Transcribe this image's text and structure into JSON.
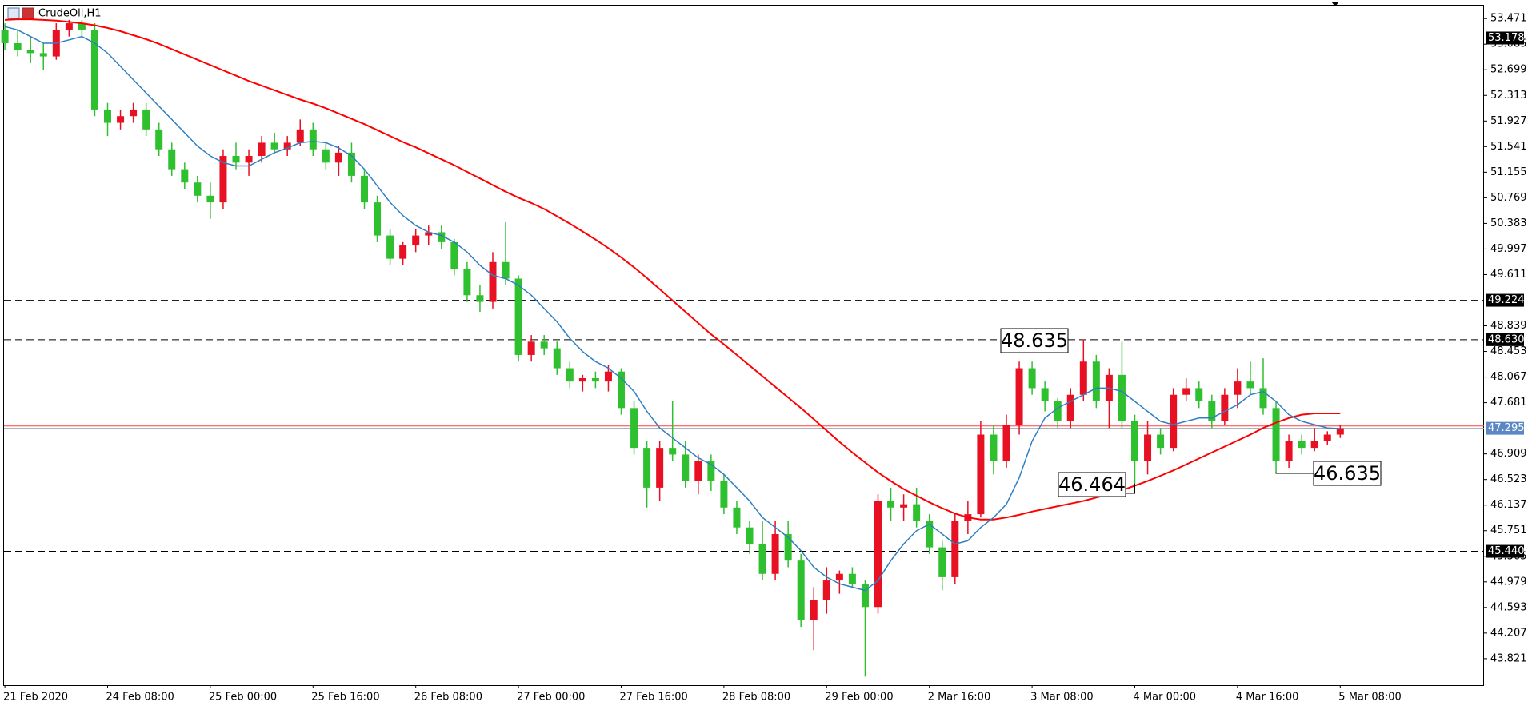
{
  "chart_data": {
    "type": "candlestick",
    "title": "CrudeOil,H1",
    "categories": [
      "21 Feb 2020",
      null,
      null,
      null,
      null,
      null,
      null,
      null,
      "24 Feb 08:00",
      null,
      null,
      null,
      null,
      null,
      null,
      null,
      "25 Feb 00:00",
      null,
      null,
      null,
      null,
      null,
      null,
      null,
      "25 Feb 16:00",
      null,
      null,
      null,
      null,
      null,
      null,
      null,
      "26 Feb 08:00",
      null,
      null,
      null,
      null,
      null,
      null,
      null,
      "27 Feb 00:00",
      null,
      null,
      null,
      null,
      null,
      null,
      null,
      "27 Feb 16:00",
      null,
      null,
      null,
      null,
      null,
      null,
      null,
      "28 Feb 08:00",
      null,
      null,
      null,
      null,
      null,
      null,
      null,
      "29 Feb 00:00",
      null,
      null,
      null,
      null,
      null,
      null,
      null,
      "2 Mar 16:00",
      null,
      null,
      null,
      null,
      null,
      null,
      null,
      "3 Mar 08:00",
      null,
      null,
      null,
      null,
      null,
      null,
      null,
      "4 Mar 00:00",
      null,
      null,
      null,
      null,
      null,
      null,
      null,
      "4 Mar 16:00",
      null,
      null,
      null,
      null,
      null,
      null,
      null,
      "5 Mar 08:00"
    ],
    "open": [
      53.3,
      53.1,
      53.0,
      52.95,
      52.9,
      53.3,
      53.4,
      53.3,
      52.1,
      51.9,
      52.0,
      52.1,
      51.8,
      51.5,
      51.2,
      51.0,
      50.8,
      50.7,
      51.4,
      51.3,
      51.4,
      51.6,
      51.5,
      51.6,
      51.8,
      51.5,
      51.3,
      51.45,
      51.1,
      50.7,
      50.2,
      49.85,
      50.05,
      50.2,
      50.25,
      50.1,
      49.7,
      49.3,
      49.2,
      49.8,
      49.55,
      48.4,
      48.6,
      48.5,
      48.2,
      48.0,
      48.05,
      48.0,
      48.15,
      47.6,
      47.0,
      46.4,
      47.0,
      46.9,
      46.5,
      46.8,
      46.5,
      46.1,
      45.8,
      45.55,
      45.1,
      45.7,
      45.3,
      44.4,
      44.7,
      45.0,
      45.1,
      44.95,
      44.6,
      46.2,
      46.1,
      46.15,
      45.9,
      45.5,
      45.05,
      45.9,
      46.0,
      47.2,
      46.8,
      47.35,
      48.2,
      47.9,
      47.7,
      47.4,
      47.8,
      48.3,
      47.7,
      48.1,
      47.4,
      46.8,
      47.2,
      47.0,
      47.8,
      47.9,
      47.7,
      47.4,
      47.8,
      48.0,
      47.9,
      47.6,
      46.8,
      47.1,
      47.0,
      47.1,
      47.2
    ],
    "high": [
      53.4,
      53.3,
      53.2,
      53.1,
      53.4,
      53.45,
      53.45,
      53.4,
      52.2,
      52.1,
      52.2,
      52.2,
      51.9,
      51.6,
      51.3,
      51.1,
      51.0,
      51.5,
      51.6,
      51.5,
      51.7,
      51.75,
      51.7,
      51.95,
      51.9,
      51.6,
      51.55,
      51.6,
      51.2,
      50.8,
      50.3,
      50.1,
      50.3,
      50.35,
      50.35,
      50.15,
      49.8,
      49.45,
      49.95,
      50.4,
      49.6,
      48.7,
      48.7,
      48.6,
      48.3,
      48.1,
      48.15,
      48.25,
      48.2,
      47.7,
      47.1,
      47.1,
      47.7,
      47.1,
      46.9,
      46.9,
      46.6,
      46.2,
      45.9,
      45.9,
      45.9,
      45.9,
      45.4,
      44.9,
      45.2,
      45.15,
      45.2,
      45.0,
      46.3,
      46.4,
      46.3,
      46.4,
      46.0,
      45.6,
      46.0,
      46.2,
      47.4,
      47.35,
      47.5,
      48.3,
      48.3,
      48.0,
      47.75,
      47.9,
      48.635,
      48.4,
      48.2,
      48.6,
      47.5,
      47.4,
      47.3,
      47.9,
      48.05,
      48.0,
      47.8,
      47.9,
      48.2,
      48.3,
      48.35,
      47.7,
      47.2,
      47.2,
      47.3,
      47.25,
      47.35
    ],
    "low": [
      53.0,
      52.9,
      52.8,
      52.7,
      52.85,
      53.2,
      53.2,
      52.0,
      51.7,
      51.8,
      51.9,
      51.7,
      51.4,
      51.1,
      50.9,
      50.7,
      50.45,
      50.6,
      51.2,
      51.1,
      51.3,
      51.45,
      51.4,
      51.55,
      51.4,
      51.2,
      51.1,
      51.0,
      50.6,
      50.1,
      49.75,
      49.75,
      49.95,
      50.05,
      50.0,
      49.6,
      49.2,
      49.05,
      49.1,
      49.45,
      48.3,
      48.3,
      48.4,
      48.1,
      47.9,
      47.85,
      47.9,
      47.85,
      47.5,
      46.9,
      46.1,
      46.2,
      46.8,
      46.4,
      46.3,
      46.35,
      46.0,
      45.7,
      45.4,
      45.0,
      45.0,
      45.2,
      44.3,
      43.95,
      44.5,
      44.8,
      44.9,
      43.55,
      44.5,
      45.9,
      45.9,
      45.8,
      45.4,
      44.85,
      44.95,
      45.7,
      45.95,
      46.6,
      46.7,
      47.2,
      47.8,
      47.55,
      47.3,
      47.3,
      47.7,
      47.6,
      47.3,
      47.3,
      46.464,
      46.6,
      46.9,
      46.95,
      47.7,
      47.6,
      47.3,
      47.35,
      47.6,
      47.8,
      47.5,
      46.635,
      46.7,
      46.9,
      46.95,
      47.05,
      47.15
    ],
    "close": [
      53.1,
      53.0,
      52.95,
      52.9,
      53.3,
      53.4,
      53.3,
      52.1,
      51.9,
      52.0,
      52.1,
      51.8,
      51.5,
      51.2,
      51.0,
      50.8,
      50.7,
      51.4,
      51.3,
      51.4,
      51.6,
      51.5,
      51.6,
      51.8,
      51.5,
      51.3,
      51.45,
      51.1,
      50.7,
      50.2,
      49.85,
      50.05,
      50.2,
      50.25,
      50.1,
      49.7,
      49.3,
      49.2,
      49.8,
      49.55,
      48.4,
      48.6,
      48.5,
      48.2,
      48.0,
      48.05,
      48.0,
      48.15,
      47.6,
      47.0,
      46.4,
      47.0,
      46.9,
      46.5,
      46.8,
      46.5,
      46.1,
      45.8,
      45.55,
      45.1,
      45.7,
      45.3,
      44.4,
      44.7,
      45.0,
      45.1,
      44.95,
      44.6,
      46.2,
      46.1,
      46.15,
      45.9,
      45.5,
      45.05,
      45.9,
      46.0,
      47.2,
      46.8,
      47.35,
      48.2,
      47.9,
      47.7,
      47.4,
      47.8,
      48.3,
      47.7,
      48.1,
      47.4,
      46.8,
      47.2,
      47.0,
      47.8,
      47.9,
      47.7,
      47.4,
      47.8,
      48.0,
      47.9,
      47.6,
      46.8,
      47.1,
      47.0,
      47.1,
      47.2,
      47.295
    ],
    "up_color": "#e81123",
    "down_color": "#2fc02f",
    "moving_averages": [
      {
        "color": "#ff0000",
        "values": [
          53.45,
          53.46,
          53.46,
          53.45,
          53.44,
          53.42,
          53.4,
          53.37,
          53.33,
          53.28,
          53.22,
          53.16,
          53.09,
          53.01,
          52.93,
          52.85,
          52.77,
          52.69,
          52.61,
          52.53,
          52.46,
          52.39,
          52.32,
          52.25,
          52.19,
          52.12,
          52.04,
          51.96,
          51.88,
          51.79,
          51.7,
          51.61,
          51.53,
          51.44,
          51.35,
          51.26,
          51.16,
          51.06,
          50.96,
          50.86,
          50.77,
          50.69,
          50.6,
          50.49,
          50.38,
          50.26,
          50.14,
          50.01,
          49.87,
          49.72,
          49.56,
          49.39,
          49.22,
          49.05,
          48.88,
          48.71,
          48.56,
          48.4,
          48.24,
          48.08,
          47.92,
          47.76,
          47.6,
          47.43,
          47.26,
          47.09,
          46.93,
          46.78,
          46.63,
          46.5,
          46.38,
          46.28,
          46.18,
          46.09,
          46.01,
          45.95,
          45.92,
          45.92,
          45.95,
          45.99,
          46.04,
          46.08,
          46.12,
          46.16,
          46.2,
          46.25,
          46.3,
          46.36,
          46.43,
          46.5,
          46.58,
          46.66,
          46.75,
          46.84,
          46.93,
          47.02,
          47.11,
          47.2,
          47.3,
          47.38,
          47.45,
          47.5,
          47.52,
          47.52,
          47.52
        ]
      },
      {
        "color": "#2f7fc1",
        "values": [
          53.35,
          53.3,
          53.2,
          53.1,
          53.1,
          53.15,
          53.2,
          53.1,
          52.95,
          52.75,
          52.55,
          52.35,
          52.15,
          51.95,
          51.75,
          51.55,
          51.4,
          51.3,
          51.25,
          51.25,
          51.35,
          51.45,
          51.52,
          51.6,
          51.62,
          51.6,
          51.52,
          51.4,
          51.2,
          50.95,
          50.7,
          50.5,
          50.35,
          50.25,
          50.2,
          50.1,
          49.95,
          49.75,
          49.6,
          49.55,
          49.45,
          49.3,
          49.1,
          48.9,
          48.65,
          48.45,
          48.3,
          48.2,
          48.05,
          47.85,
          47.55,
          47.3,
          47.15,
          47.0,
          46.85,
          46.75,
          46.6,
          46.4,
          46.2,
          45.95,
          45.8,
          45.65,
          45.45,
          45.2,
          45.05,
          44.95,
          44.9,
          44.85,
          45.0,
          45.3,
          45.55,
          45.75,
          45.85,
          45.7,
          45.55,
          45.6,
          45.8,
          45.95,
          46.15,
          46.55,
          47.1,
          47.45,
          47.6,
          47.7,
          47.8,
          47.9,
          47.9,
          47.85,
          47.7,
          47.55,
          47.4,
          47.35,
          47.4,
          47.45,
          47.45,
          47.55,
          47.65,
          47.8,
          47.85,
          47.7,
          47.5,
          47.4,
          47.35,
          47.3,
          47.29
        ]
      }
    ],
    "ylim": [
      43.422,
      53.678
    ],
    "yticks": [
      53.471,
      53.085,
      52.699,
      52.313,
      51.927,
      51.541,
      51.155,
      50.769,
      50.383,
      49.997,
      49.611,
      48.839,
      48.453,
      48.067,
      47.681,
      46.909,
      46.523,
      46.137,
      45.751,
      45.365,
      44.979,
      44.593,
      44.207,
      43.821
    ],
    "levels": [
      {
        "value": 53.178,
        "label": "53.178"
      },
      {
        "value": 49.224,
        "label": "49.224"
      },
      {
        "value": 48.63,
        "label": "48.630"
      },
      {
        "value": 45.44,
        "label": "45.440"
      }
    ],
    "bid": 47.295,
    "ask": 47.33,
    "annotations": [
      48.635,
      46.464,
      46.635
    ]
  }
}
